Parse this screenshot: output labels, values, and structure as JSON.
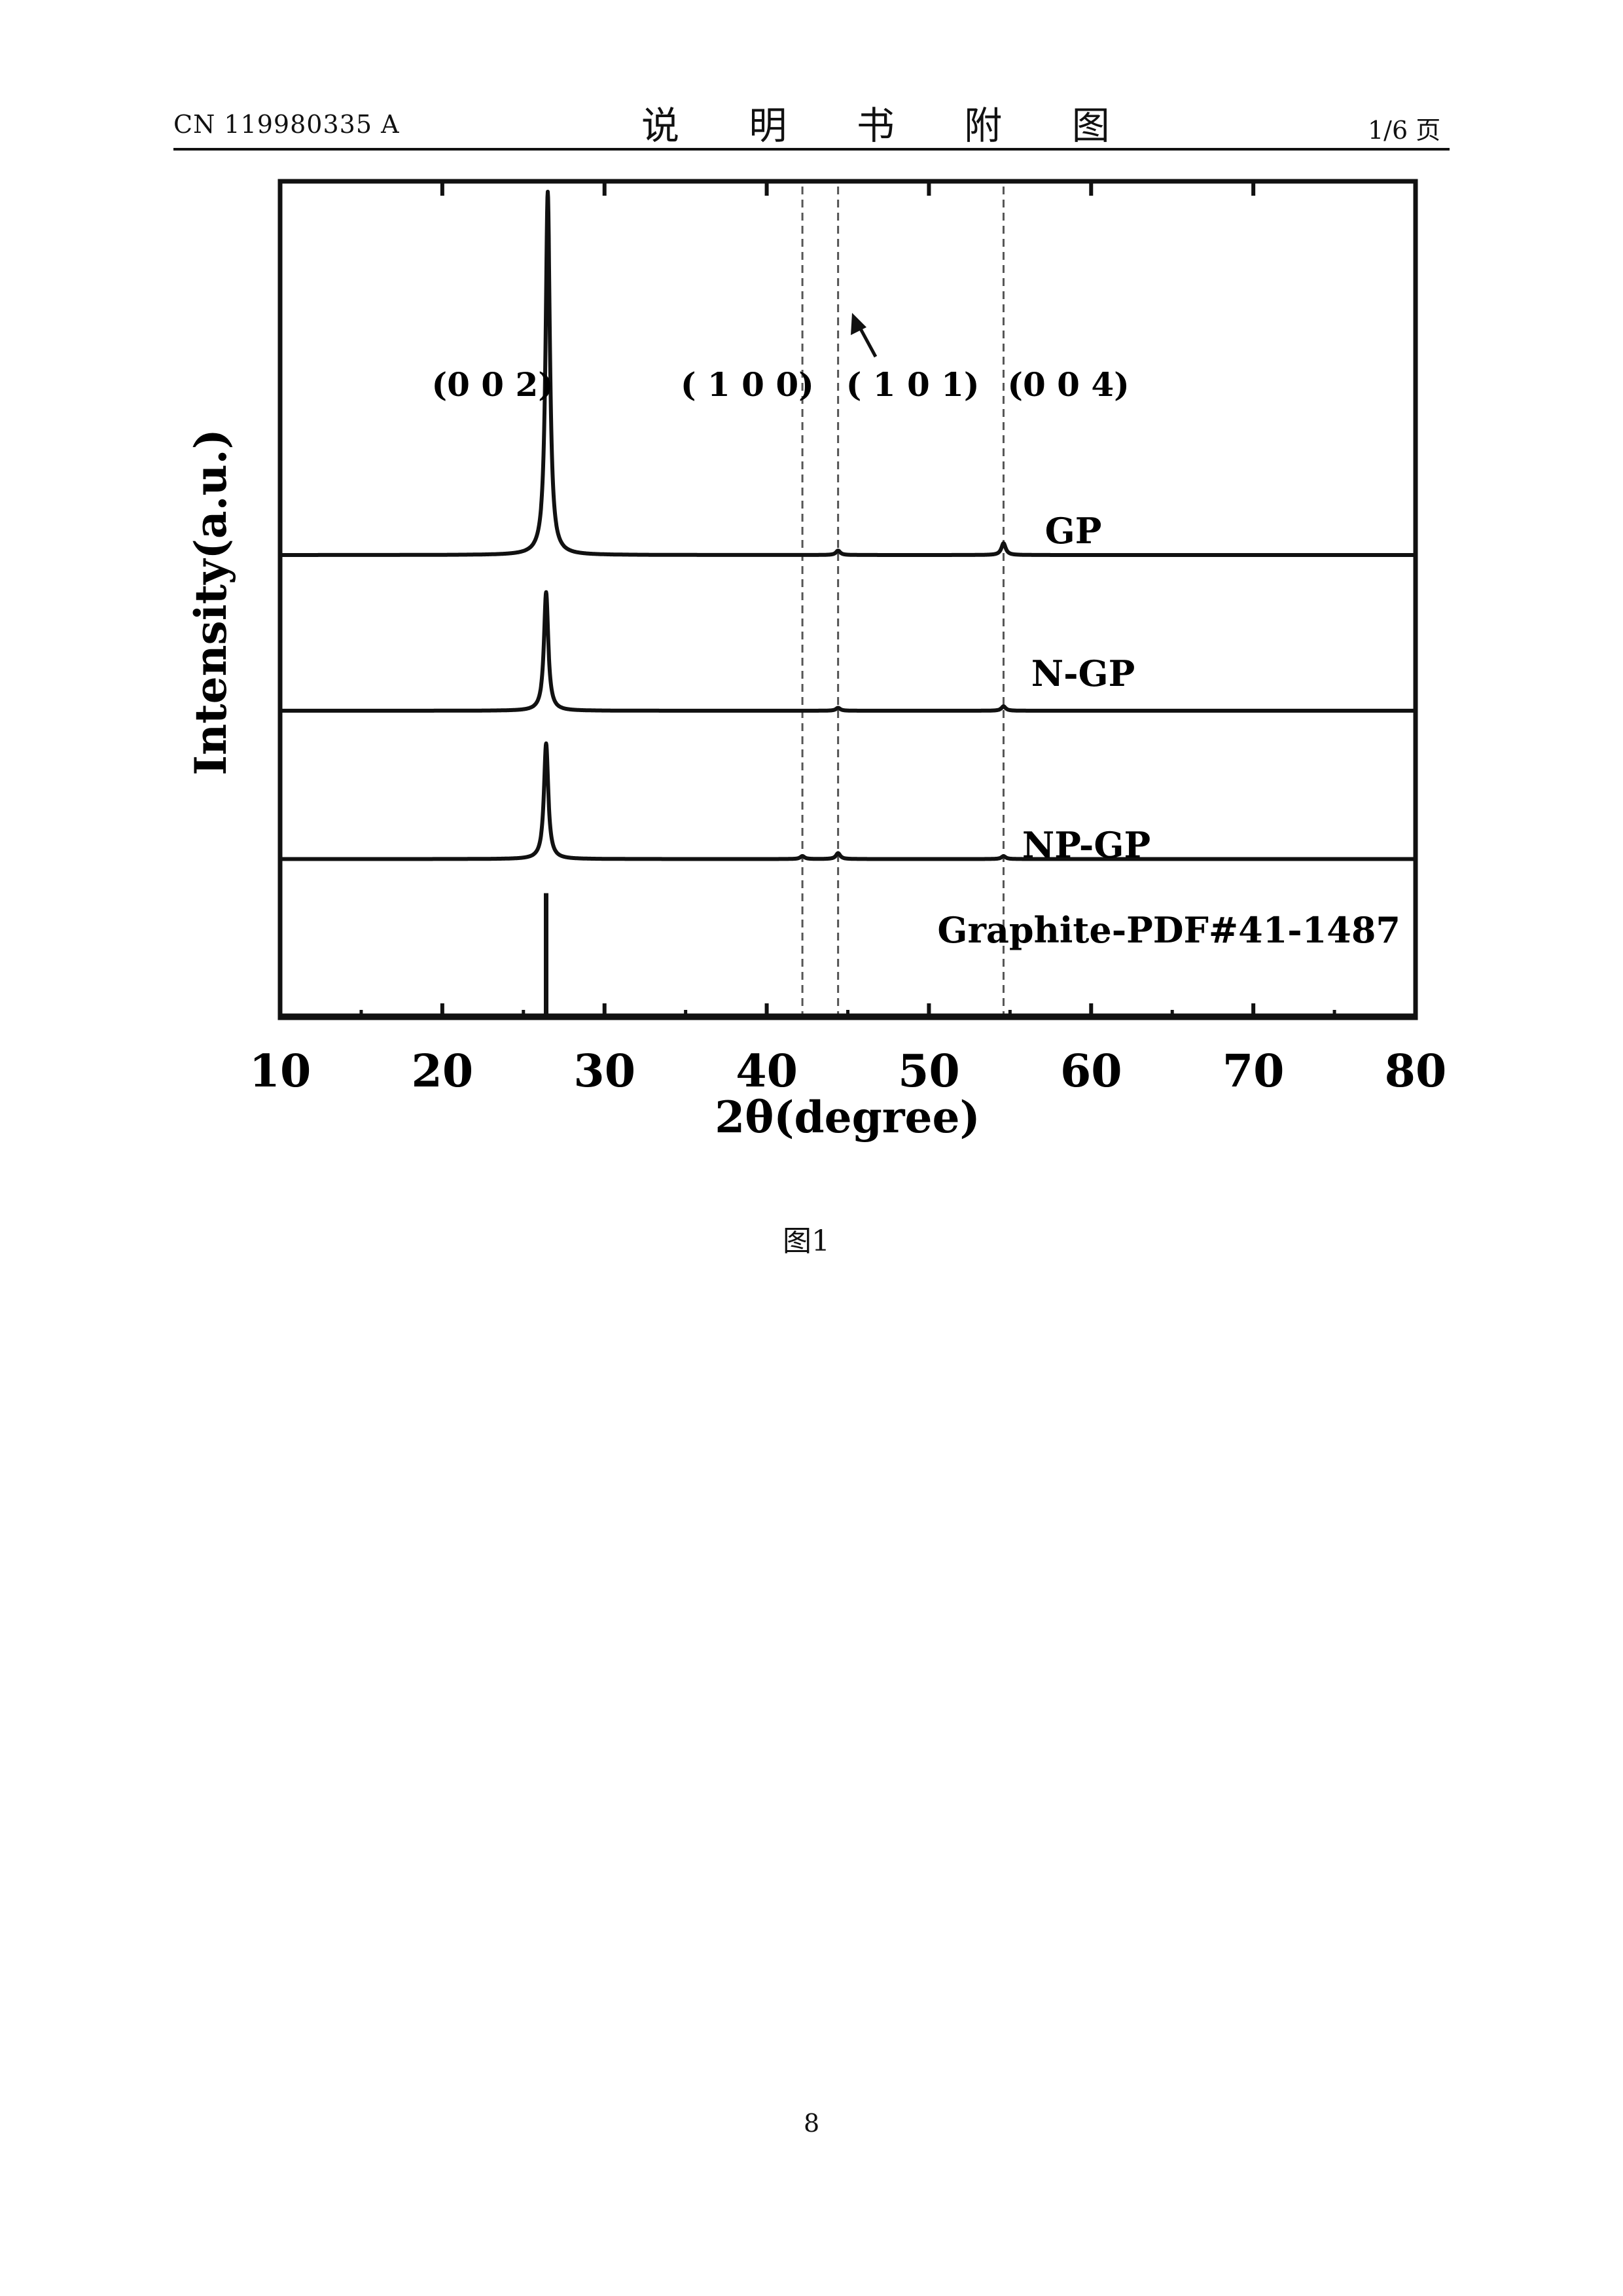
{
  "header": {
    "doc_number": "CN 119980335 A",
    "title": "说 明 书 附 图",
    "page_of": "1/6 页"
  },
  "figure_caption": "图1",
  "page_number": "8",
  "chart_data": {
    "type": "line",
    "title": "",
    "xlabel": "2θ(degree)",
    "ylabel": "Intensity(a.u.)",
    "xlim": [
      10,
      80
    ],
    "x_ticks": [
      "10",
      "20",
      "30",
      "40",
      "50",
      "60",
      "70",
      "80"
    ],
    "y_ticks": [],
    "grid": false,
    "legend": "none",
    "reference_lines_x": [
      42.2,
      44.4,
      54.6
    ],
    "peak_labels": [
      {
        "text": "(0 0 2)",
        "x": 23.1
      },
      {
        "text": "( 1 0 0)",
        "x": 38.8
      },
      {
        "text": "( 1 0 1)",
        "x": 49.0
      },
      {
        "text": "(0 0 4)",
        "x": 58.6
      }
    ],
    "series": [
      {
        "name": "GP",
        "baseline": 3.1,
        "peaks": [
          {
            "x": 26.5,
            "height": 2.45
          },
          {
            "x": 44.4,
            "height": 0.03
          },
          {
            "x": 54.6,
            "height": 0.08
          }
        ]
      },
      {
        "name": "N-GP",
        "baseline": 2.05,
        "peaks": [
          {
            "x": 26.4,
            "height": 0.8
          },
          {
            "x": 44.4,
            "height": 0.02
          },
          {
            "x": 54.6,
            "height": 0.03
          }
        ]
      },
      {
        "name": "NP-GP",
        "baseline": 1.05,
        "peaks": [
          {
            "x": 26.4,
            "height": 0.78
          },
          {
            "x": 42.2,
            "height": 0.02
          },
          {
            "x": 44.4,
            "height": 0.04
          },
          {
            "x": 54.6,
            "height": 0.02
          }
        ]
      },
      {
        "name": "Graphite-PDF#41-1487",
        "baseline": 0.0,
        "sticks": [
          {
            "x": 26.4,
            "height": 0.82
          }
        ]
      }
    ]
  }
}
